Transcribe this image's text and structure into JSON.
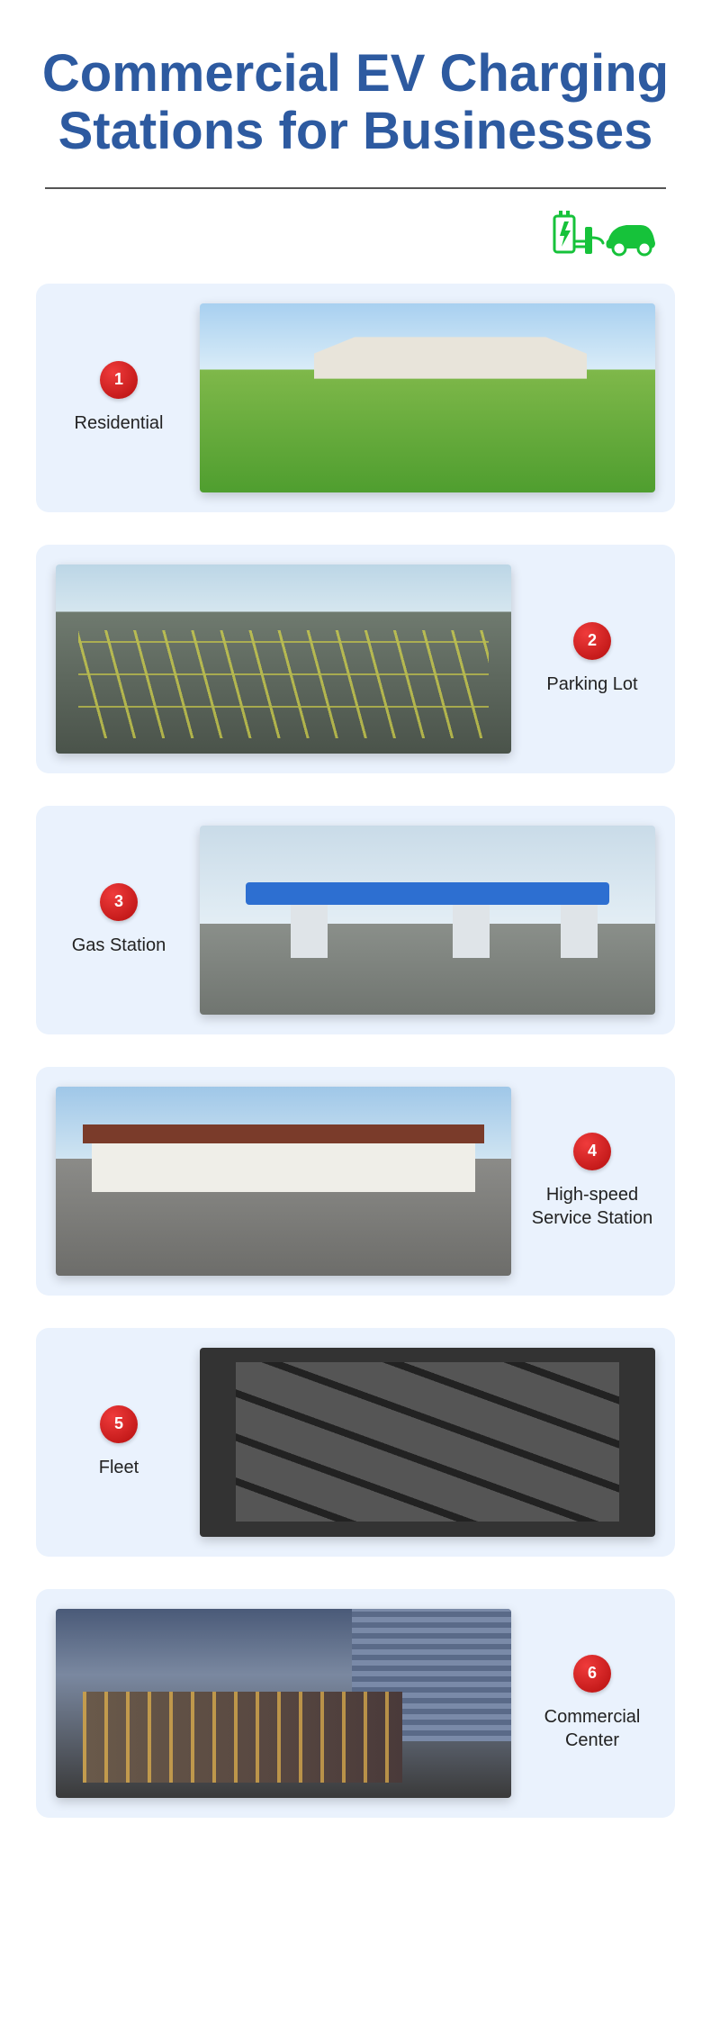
{
  "title": "Commercial EV Charging Stations for Businesses",
  "title_color": "#2d5aa0",
  "icon_color": "#16c23a",
  "badge_color": "#d11414",
  "card_bg": "#eaf2fd",
  "items": [
    {
      "num": "1",
      "label": "Residential",
      "side": "left",
      "scene": "scene-residential"
    },
    {
      "num": "2",
      "label": "Parking Lot",
      "side": "right",
      "scene": "scene-parking"
    },
    {
      "num": "3",
      "label": "Gas Station",
      "side": "left",
      "scene": "scene-gas"
    },
    {
      "num": "4",
      "label": "High-speed Service Station",
      "side": "right",
      "scene": "scene-service"
    },
    {
      "num": "5",
      "label": "Fleet",
      "side": "left",
      "scene": "scene-fleet"
    },
    {
      "num": "6",
      "label": "Commercial Center",
      "side": "right",
      "scene": "scene-commercial"
    }
  ]
}
